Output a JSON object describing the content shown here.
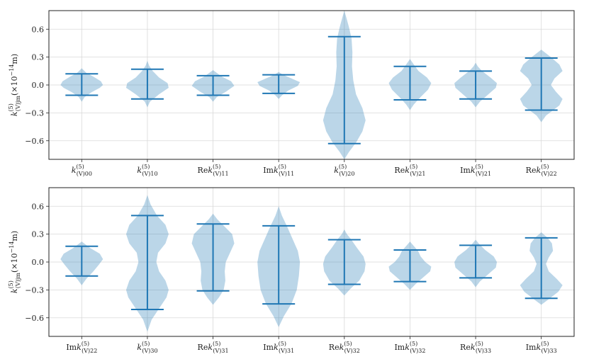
{
  "chart_data": [
    {
      "type": "violin",
      "ylabel": "k^(5)_(V)jm (×10^−14m)",
      "ylim": [
        -0.8,
        0.8
      ],
      "yticks": [
        -0.6,
        -0.3,
        0.0,
        0.3,
        0.6
      ],
      "ytick_labels": [
        "−0.6",
        "−0.3",
        "0.0",
        "0.3",
        "0.6"
      ],
      "grid": true,
      "categories": [
        "k(V)00",
        "k(V)10",
        "Rek(V)11",
        "Imk(V)11",
        "k(V)20",
        "Rek(V)21",
        "Imk(V)21",
        "Rek(V)22"
      ],
      "labels": [
        {
          "pre": "",
          "sup": "(5)",
          "sub": "(V)00"
        },
        {
          "pre": "",
          "sup": "(5)",
          "sub": "(V)10"
        },
        {
          "pre": "Re",
          "sup": "(5)",
          "sub": "(V)11"
        },
        {
          "pre": "Im",
          "sup": "(5)",
          "sub": "(V)11"
        },
        {
          "pre": "",
          "sup": "(5)",
          "sub": "(V)20"
        },
        {
          "pre": "Re",
          "sup": "(5)",
          "sub": "(V)21"
        },
        {
          "pre": "Im",
          "sup": "(5)",
          "sub": "(V)21"
        },
        {
          "pre": "Re",
          "sup": "(5)",
          "sub": "(V)22"
        }
      ],
      "violins": [
        {
          "min": -0.11,
          "max": 0.12,
          "profile": [
            [
              -0.18,
              0
            ],
            [
              -0.13,
              0.14
            ],
            [
              -0.08,
              0.45
            ],
            [
              -0.03,
              0.85
            ],
            [
              0.0,
              1.0
            ],
            [
              0.04,
              0.9
            ],
            [
              0.09,
              0.55
            ],
            [
              0.13,
              0.22
            ],
            [
              0.18,
              0
            ]
          ]
        },
        {
          "min": -0.15,
          "max": 0.17,
          "profile": [
            [
              -0.24,
              0
            ],
            [
              -0.18,
              0.12
            ],
            [
              -0.1,
              0.55
            ],
            [
              -0.03,
              1.0
            ],
            [
              0.02,
              0.95
            ],
            [
              0.08,
              0.55
            ],
            [
              0.15,
              0.25
            ],
            [
              0.21,
              0.08
            ],
            [
              0.26,
              0
            ]
          ]
        },
        {
          "min": -0.11,
          "max": 0.1,
          "profile": [
            [
              -0.18,
              0
            ],
            [
              -0.13,
              0.18
            ],
            [
              -0.07,
              0.62
            ],
            [
              -0.01,
              1.0
            ],
            [
              0.04,
              0.85
            ],
            [
              0.09,
              0.42
            ],
            [
              0.13,
              0.18
            ],
            [
              0.16,
              0
            ]
          ]
        },
        {
          "min": -0.09,
          "max": 0.11,
          "profile": [
            [
              -0.15,
              0
            ],
            [
              -0.11,
              0.16
            ],
            [
              -0.06,
              0.45
            ],
            [
              -0.01,
              0.9
            ],
            [
              0.03,
              1.0
            ],
            [
              0.07,
              0.6
            ],
            [
              0.11,
              0.2
            ],
            [
              0.14,
              0
            ]
          ]
        },
        {
          "min": -0.63,
          "max": 0.52,
          "profile": [
            [
              -0.8,
              0
            ],
            [
              -0.72,
              0.22
            ],
            [
              -0.62,
              0.55
            ],
            [
              -0.5,
              0.85
            ],
            [
              -0.38,
              1.0
            ],
            [
              -0.25,
              0.85
            ],
            [
              -0.1,
              0.55
            ],
            [
              0.05,
              0.42
            ],
            [
              0.2,
              0.36
            ],
            [
              0.35,
              0.38
            ],
            [
              0.5,
              0.34
            ],
            [
              0.62,
              0.22
            ],
            [
              0.72,
              0.1
            ],
            [
              0.8,
              0
            ]
          ]
        },
        {
          "min": -0.16,
          "max": 0.2,
          "profile": [
            [
              -0.27,
              0
            ],
            [
              -0.21,
              0.18
            ],
            [
              -0.13,
              0.5
            ],
            [
              -0.05,
              0.85
            ],
            [
              0.02,
              1.0
            ],
            [
              0.08,
              0.8
            ],
            [
              0.15,
              0.4
            ],
            [
              0.22,
              0.18
            ],
            [
              0.28,
              0
            ]
          ]
        },
        {
          "min": -0.15,
          "max": 0.15,
          "profile": [
            [
              -0.24,
              0
            ],
            [
              -0.18,
              0.2
            ],
            [
              -0.11,
              0.55
            ],
            [
              -0.03,
              0.95
            ],
            [
              0.02,
              1.0
            ],
            [
              0.08,
              0.7
            ],
            [
              0.15,
              0.3
            ],
            [
              0.2,
              0.1
            ],
            [
              0.24,
              0
            ]
          ]
        },
        {
          "min": -0.27,
          "max": 0.29,
          "profile": [
            [
              -0.4,
              0
            ],
            [
              -0.33,
              0.22
            ],
            [
              -0.22,
              0.85
            ],
            [
              -0.15,
              1.0
            ],
            [
              -0.07,
              0.68
            ],
            [
              0.0,
              0.45
            ],
            [
              0.07,
              0.62
            ],
            [
              0.15,
              1.0
            ],
            [
              0.22,
              0.85
            ],
            [
              0.3,
              0.45
            ],
            [
              0.38,
              0
            ]
          ]
        }
      ]
    },
    {
      "type": "violin",
      "ylabel": "k^(5)_(V)jm (×10^−14m)",
      "ylim": [
        -0.8,
        0.8
      ],
      "yticks": [
        -0.6,
        -0.3,
        0.0,
        0.3,
        0.6
      ],
      "ytick_labels": [
        "−0.6",
        "−0.3",
        "0.0",
        "0.3",
        "0.6"
      ],
      "grid": true,
      "categories": [
        "Imk(V)22",
        "k(V)30",
        "Rek(V)31",
        "Imk(V)31",
        "Rek(V)32",
        "Imk(V)32",
        "Rek(V)33",
        "Imk(V)33"
      ],
      "labels": [
        {
          "pre": "Im",
          "sup": "(5)",
          "sub": "(V)22"
        },
        {
          "pre": "",
          "sup": "(5)",
          "sub": "(V)30"
        },
        {
          "pre": "Re",
          "sup": "(5)",
          "sub": "(V)31"
        },
        {
          "pre": "Im",
          "sup": "(5)",
          "sub": "(V)31"
        },
        {
          "pre": "Re",
          "sup": "(5)",
          "sub": "(V)32"
        },
        {
          "pre": "Im",
          "sup": "(5)",
          "sub": "(V)32"
        },
        {
          "pre": "Re",
          "sup": "(5)",
          "sub": "(V)33"
        },
        {
          "pre": "Im",
          "sup": "(5)",
          "sub": "(V)33"
        }
      ],
      "violins": [
        {
          "min": -0.15,
          "max": 0.17,
          "profile": [
            [
              -0.25,
              0
            ],
            [
              -0.18,
              0.22
            ],
            [
              -0.1,
              0.55
            ],
            [
              -0.03,
              0.8
            ],
            [
              0.03,
              1.0
            ],
            [
              0.09,
              0.85
            ],
            [
              0.15,
              0.4
            ],
            [
              0.22,
              0
            ]
          ]
        },
        {
          "min": -0.51,
          "max": 0.5,
          "profile": [
            [
              -0.75,
              0
            ],
            [
              -0.62,
              0.2
            ],
            [
              -0.5,
              0.55
            ],
            [
              -0.38,
              0.9
            ],
            [
              -0.3,
              1.0
            ],
            [
              -0.2,
              0.85
            ],
            [
              -0.1,
              0.55
            ],
            [
              0.0,
              0.42
            ],
            [
              0.1,
              0.5
            ],
            [
              0.2,
              0.85
            ],
            [
              0.3,
              1.0
            ],
            [
              0.4,
              0.85
            ],
            [
              0.5,
              0.45
            ],
            [
              0.62,
              0.15
            ],
            [
              0.72,
              0
            ]
          ]
        },
        {
          "min": -0.31,
          "max": 0.41,
          "profile": [
            [
              -0.46,
              0
            ],
            [
              -0.38,
              0.28
            ],
            [
              -0.3,
              0.5
            ],
            [
              -0.2,
              0.58
            ],
            [
              -0.1,
              0.55
            ],
            [
              0.0,
              0.6
            ],
            [
              0.1,
              0.8
            ],
            [
              0.2,
              1.0
            ],
            [
              0.3,
              0.9
            ],
            [
              0.38,
              0.55
            ],
            [
              0.46,
              0.2
            ],
            [
              0.52,
              0
            ]
          ]
        },
        {
          "min": -0.45,
          "max": 0.39,
          "profile": [
            [
              -0.7,
              0
            ],
            [
              -0.58,
              0.25
            ],
            [
              -0.45,
              0.6
            ],
            [
              -0.3,
              0.85
            ],
            [
              -0.15,
              0.95
            ],
            [
              0.0,
              1.0
            ],
            [
              0.12,
              0.9
            ],
            [
              0.25,
              0.65
            ],
            [
              0.38,
              0.4
            ],
            [
              0.5,
              0.15
            ],
            [
              0.6,
              0
            ]
          ]
        },
        {
          "min": -0.24,
          "max": 0.24,
          "profile": [
            [
              -0.36,
              0
            ],
            [
              -0.29,
              0.28
            ],
            [
              -0.2,
              0.7
            ],
            [
              -0.1,
              0.95
            ],
            [
              -0.02,
              1.0
            ],
            [
              0.06,
              0.9
            ],
            [
              0.15,
              0.6
            ],
            [
              0.25,
              0.3
            ],
            [
              0.3,
              0.12
            ],
            [
              0.35,
              0
            ]
          ]
        },
        {
          "min": -0.21,
          "max": 0.13,
          "profile": [
            [
              -0.3,
              0
            ],
            [
              -0.24,
              0.25
            ],
            [
              -0.17,
              0.6
            ],
            [
              -0.1,
              0.95
            ],
            [
              -0.05,
              1.0
            ],
            [
              0.0,
              0.72
            ],
            [
              0.06,
              0.5
            ],
            [
              0.12,
              0.38
            ],
            [
              0.18,
              0.15
            ],
            [
              0.22,
              0
            ]
          ]
        },
        {
          "min": -0.17,
          "max": 0.18,
          "profile": [
            [
              -0.27,
              0
            ],
            [
              -0.21,
              0.2
            ],
            [
              -0.14,
              0.55
            ],
            [
              -0.06,
              0.95
            ],
            [
              0.0,
              1.0
            ],
            [
              0.06,
              0.85
            ],
            [
              0.13,
              0.45
            ],
            [
              0.19,
              0.18
            ],
            [
              0.24,
              0
            ]
          ]
        },
        {
          "min": -0.39,
          "max": 0.26,
          "profile": [
            [
              -0.46,
              0
            ],
            [
              -0.4,
              0.35
            ],
            [
              -0.32,
              0.8
            ],
            [
              -0.25,
              1.0
            ],
            [
              -0.18,
              0.72
            ],
            [
              -0.1,
              0.35
            ],
            [
              -0.02,
              0.22
            ],
            [
              0.05,
              0.35
            ],
            [
              0.12,
              0.55
            ],
            [
              0.2,
              0.5
            ],
            [
              0.26,
              0.3
            ],
            [
              0.32,
              0
            ]
          ]
        }
      ]
    }
  ]
}
